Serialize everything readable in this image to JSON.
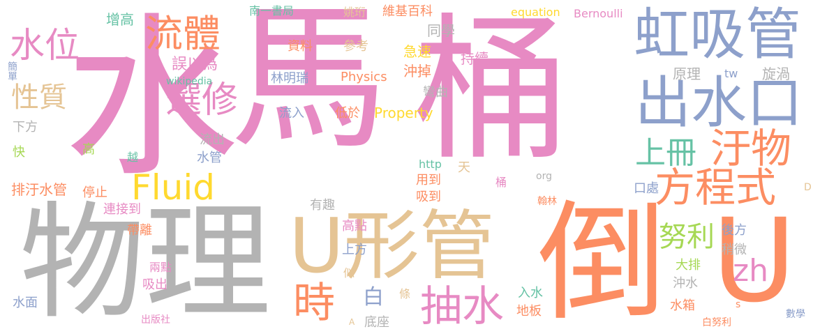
{
  "words": [
    {
      "text": "水",
      "color": "#e78ac3"
    },
    {
      "text": "馬",
      "color": "#e78ac3"
    },
    {
      "text": "桶",
      "color": "#e78ac3"
    },
    {
      "text": "物理",
      "color": "#b3b3b3"
    },
    {
      "text": "倒",
      "color": "#fc8d62"
    },
    {
      "text": "U",
      "color": "#fc8d62"
    },
    {
      "text": "U形管",
      "color": "#e5c494"
    },
    {
      "text": "虹吸管",
      "color": "#8da0cb"
    },
    {
      "text": "出水口",
      "color": "#8da0cb"
    },
    {
      "text": "流體",
      "color": "#fc8d62"
    },
    {
      "text": "水位",
      "color": "#e78ac3"
    },
    {
      "text": "選修",
      "color": "#e78ac3"
    },
    {
      "text": "Fluid",
      "color": "#ffd92f"
    },
    {
      "text": "方程式",
      "color": "#fc8d62"
    },
    {
      "text": "汙物",
      "color": "#fc8d62"
    },
    {
      "text": "上冊",
      "color": "#66c2a5"
    },
    {
      "text": "抽水",
      "color": "#e78ac3"
    },
    {
      "text": "時",
      "color": "#fc8d62"
    },
    {
      "text": "zh",
      "color": "#e78ac3"
    },
    {
      "text": "性質",
      "color": "#e5c494"
    },
    {
      "text": "努利",
      "color": "#a6d854"
    },
    {
      "text": "白",
      "color": "#8da0cb"
    },
    {
      "text": "增高",
      "color": "#66c2a5"
    },
    {
      "text": "南一書局",
      "color": "#66c2a5"
    },
    {
      "text": "姚珩",
      "color": "#e5c494"
    },
    {
      "text": "維基百科",
      "color": "#fc8d62"
    },
    {
      "text": "equation",
      "color": "#ffd92f"
    },
    {
      "text": "Bernoulli",
      "color": "#e78ac3"
    },
    {
      "text": "同學",
      "color": "#b3b3b3"
    },
    {
      "text": "資料",
      "color": "#fc8d62"
    },
    {
      "text": "參考",
      "color": "#e5c494"
    },
    {
      "text": "急速",
      "color": "#ffd92f"
    },
    {
      "text": "持續",
      "color": "#e78ac3"
    },
    {
      "text": "沖掉",
      "color": "#fc8d62"
    },
    {
      "text": "誤以為",
      "color": "#e78ac3"
    },
    {
      "text": "wikipedia",
      "color": "#66c2a5"
    },
    {
      "text": "林明瑞",
      "color": "#8da0cb"
    },
    {
      "text": "Physics",
      "color": "#fc8d62"
    },
    {
      "text": "原理",
      "color": "#b3b3b3"
    },
    {
      "text": "tw",
      "color": "#8da0cb"
    },
    {
      "text": "旋渦",
      "color": "#b3b3b3"
    },
    {
      "text": "彎曲",
      "color": "#b3b3b3"
    },
    {
      "text": "流入",
      "color": "#8da0cb"
    },
    {
      "text": "低於",
      "color": "#fc8d62"
    },
    {
      "text": "Property",
      "color": "#ffd92f"
    },
    {
      "text": "下方",
      "color": "#b3b3b3"
    },
    {
      "text": "簡單",
      "color": "#8da0cb"
    },
    {
      "text": "快",
      "color": "#a6d854"
    },
    {
      "text": "高",
      "color": "#a6d854"
    },
    {
      "text": "越",
      "color": "#66c2a5"
    },
    {
      "text": "流出",
      "color": "#b3b3b3"
    },
    {
      "text": "水管",
      "color": "#8da0cb"
    },
    {
      "text": "http",
      "color": "#66c2a5"
    },
    {
      "text": "天",
      "color": "#e5c494"
    },
    {
      "text": "org",
      "color": "#b3b3b3"
    },
    {
      "text": "排汙水管",
      "color": "#fc8d62"
    },
    {
      "text": "停止",
      "color": "#fc8d62"
    },
    {
      "text": "連接到",
      "color": "#e78ac3"
    },
    {
      "text": "用到",
      "color": "#fc8d62"
    },
    {
      "text": "吸到",
      "color": "#fc8d62"
    },
    {
      "text": "桶",
      "color": "#e78ac3"
    },
    {
      "text": "翰林",
      "color": "#fc8d62"
    },
    {
      "text": "口處",
      "color": "#8da0cb"
    },
    {
      "text": "D",
      "color": "#e5c494"
    },
    {
      "text": "有趣",
      "color": "#b3b3b3"
    },
    {
      "text": "帶離",
      "color": "#fc8d62"
    },
    {
      "text": "高點",
      "color": "#e78ac3"
    },
    {
      "text": "上方",
      "color": "#8da0cb"
    },
    {
      "text": "後方",
      "color": "#8da0cb"
    },
    {
      "text": "稍微",
      "color": "#b3b3b3"
    },
    {
      "text": "大排",
      "color": "#a6d854"
    },
    {
      "text": "沖水",
      "color": "#b3b3b3"
    },
    {
      "text": "入水",
      "color": "#66c2a5"
    },
    {
      "text": "地板",
      "color": "#fc8d62"
    },
    {
      "text": "水箱",
      "color": "#fc8d62"
    },
    {
      "text": "s",
      "color": "#fc8d62"
    },
    {
      "text": "兩點",
      "color": "#e78ac3"
    },
    {
      "text": "吸出",
      "color": "#e78ac3"
    },
    {
      "text": "似",
      "color": "#e5c494"
    },
    {
      "text": "條",
      "color": "#e5c494"
    },
    {
      "text": "底座",
      "color": "#b3b3b3"
    },
    {
      "text": "A",
      "color": "#e5c494"
    },
    {
      "text": "水面",
      "color": "#8da0cb"
    },
    {
      "text": "出版社",
      "color": "#e78ac3"
    },
    {
      "text": "白努利",
      "color": "#fc8d62"
    },
    {
      "text": "數學",
      "color": "#8da0cb"
    }
  ]
}
